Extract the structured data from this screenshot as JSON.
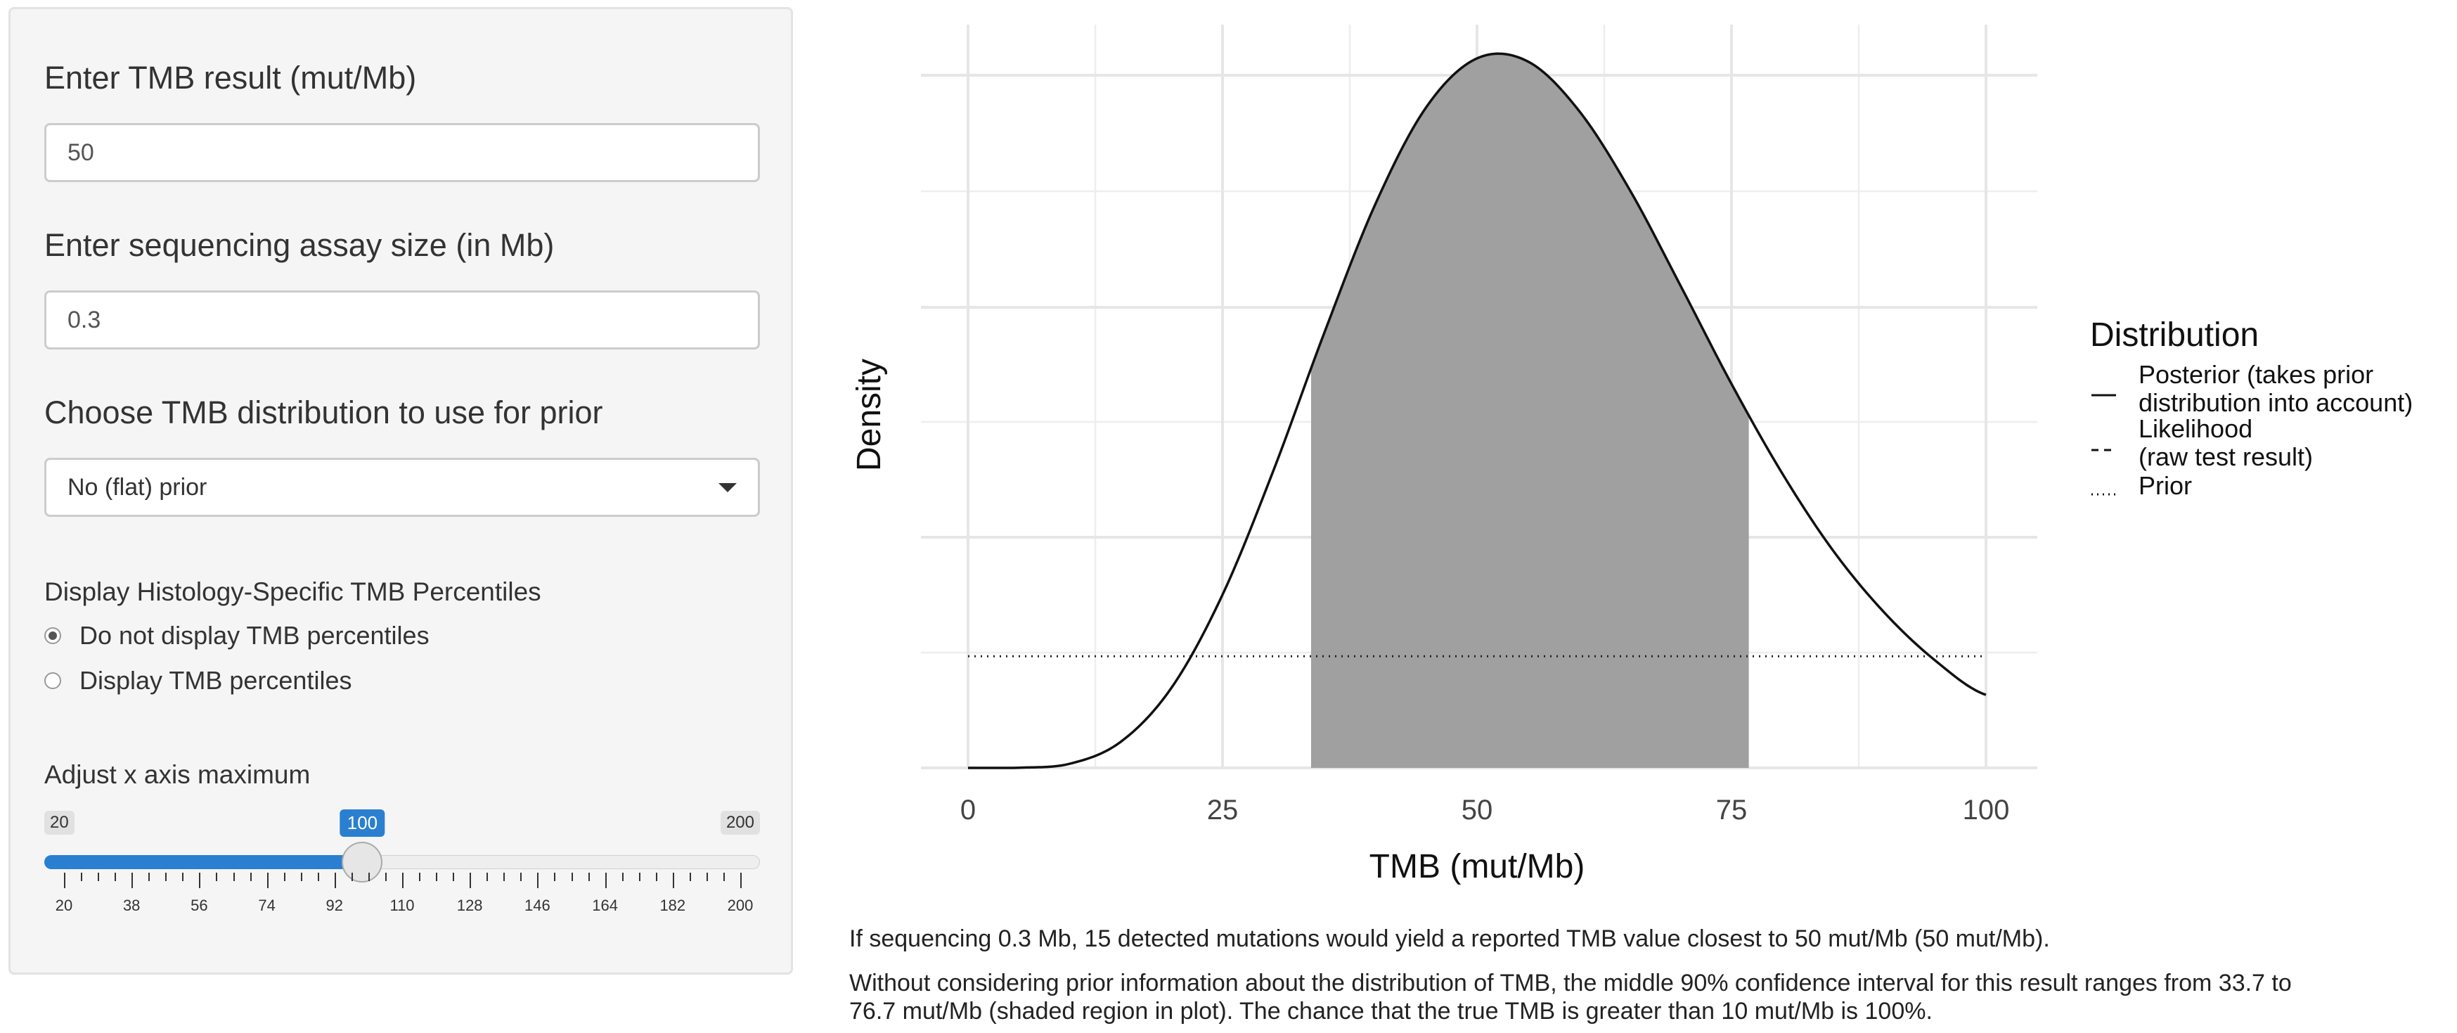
{
  "sidebar": {
    "tmb_label": "Enter TMB result (mut/Mb)",
    "tmb_value": "50",
    "assay_label": "Enter sequencing assay size (in Mb)",
    "assay_value": "0.3",
    "prior_label": "Choose TMB distribution to use for prior",
    "prior_selected": "No (flat) prior",
    "percentiles_label": "Display Histology-Specific TMB Percentiles",
    "radio_options": [
      "Do not display TMB percentiles",
      "Display TMB percentiles"
    ],
    "radio_selected_index": 0,
    "xmax_label": "Adjust x axis maximum",
    "slider": {
      "min": 20,
      "max": 200,
      "value": 100,
      "min_label": "20",
      "max_label": "200",
      "value_label": "100",
      "tick_labels": [
        "20",
        "38",
        "56",
        "74",
        "92",
        "110",
        "128",
        "146",
        "164",
        "182",
        "200"
      ]
    }
  },
  "chart_data": {
    "type": "area",
    "xlabel": "TMB (mut/Mb)",
    "ylabel": "Density",
    "xlim": [
      0,
      100
    ],
    "x_ticks": [
      "0",
      "25",
      "50",
      "75",
      "100"
    ],
    "grid": true,
    "legend_title": "Distribution",
    "legend_position": "right",
    "legend": [
      {
        "line": "solid",
        "label_lines": [
          "Posterior (takes prior",
          "distribution into account)"
        ]
      },
      {
        "line": "dashed",
        "label_lines": [
          "Likelihood",
          "(raw test result)"
        ]
      },
      {
        "line": "dotted",
        "label_lines": [
          "Prior"
        ]
      }
    ],
    "series": [
      {
        "name": "Posterior (takes prior distribution into account)",
        "style": "solid",
        "x": [
          0,
          5,
          10,
          15,
          20,
          25,
          30,
          35,
          40,
          45,
          50,
          55,
          60,
          65,
          70,
          75,
          80,
          85,
          90,
          95,
          100
        ],
        "y": [
          0.0,
          2e-05,
          0.0004,
          0.0025,
          0.0077,
          0.0166,
          0.0285,
          0.0417,
          0.054,
          0.0633,
          0.068,
          0.0677,
          0.063,
          0.0554,
          0.0462,
          0.0368,
          0.0282,
          0.0208,
          0.0149,
          0.0103,
          0.007
        ]
      },
      {
        "name": "Prior",
        "style": "dotted",
        "x": [
          0,
          100
        ],
        "y": [
          0.0107,
          0.0107
        ]
      }
    ],
    "shaded_interval": [
      33.7,
      76.7
    ],
    "shade_color": "#a0a0a0"
  },
  "captions": {
    "line1": "If sequencing 0.3 Mb, 15 detected mutations would yield a reported TMB value closest to 50 mut/Mb (50 mut/Mb).",
    "line2a": "Without considering prior information about the distribution of TMB, the middle 90% confidence interval for this result ranges from 33.7 to",
    "line2b": "76.7 mut/Mb (shaded region in plot). The chance that the true TMB is greater than 10 mut/Mb is 100%."
  }
}
